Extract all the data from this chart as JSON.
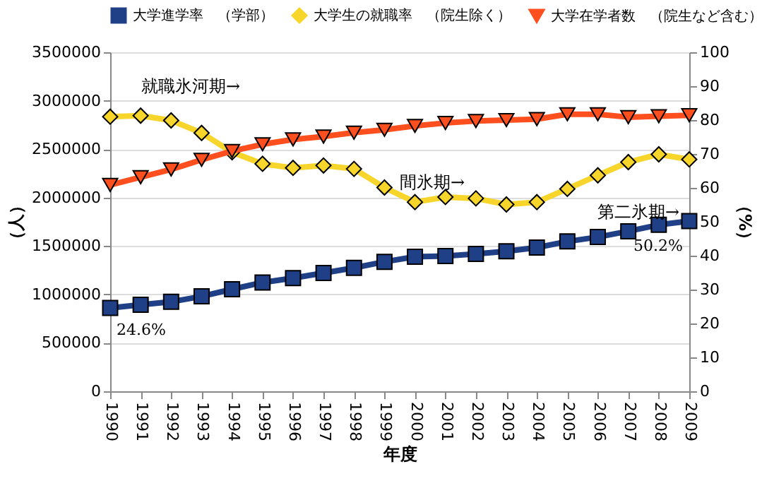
{
  "chart_data": {
    "type": "line",
    "xlabel": "年度",
    "ylabel": "（人）",
    "y2label": "（%）",
    "categories": [
      "1990",
      "1991",
      "1992",
      "1993",
      "1994",
      "1995",
      "1996",
      "1997",
      "1998",
      "1999",
      "2000",
      "2001",
      "2002",
      "2003",
      "2004",
      "2005",
      "2006",
      "2007",
      "2008",
      "2009"
    ],
    "series": [
      {
        "name": "大学進学率　（学部）",
        "color": "#1f3f86",
        "marker": "square",
        "axis": "y2",
        "values": [
          24.6,
          25.5,
          26.4,
          28.0,
          30.1,
          32.1,
          33.4,
          34.9,
          36.4,
          38.2,
          39.7,
          39.9,
          40.5,
          41.3,
          42.4,
          44.2,
          45.5,
          47.2,
          49.1,
          50.2
        ],
        "value_labels": [
          "24.6%",
          null,
          null,
          null,
          null,
          null,
          null,
          null,
          null,
          null,
          null,
          null,
          null,
          null,
          null,
          null,
          null,
          null,
          null,
          "50.2%"
        ]
      },
      {
        "name": "大学生の就職率　（院生除く）",
        "color": "#f7d52a",
        "marker": "diamond",
        "axis": "y2",
        "values": [
          81.0,
          81.3,
          79.9,
          76.2,
          70.5,
          67.1,
          65.9,
          66.6,
          65.6,
          60.1,
          55.8,
          57.3,
          56.9,
          55.1,
          55.8,
          59.7,
          63.7,
          67.6,
          69.9,
          68.4
        ]
      },
      {
        "name": "大学在学者数　（院生など含む）",
        "color": "#ff4f1f",
        "marker": "triangle-down",
        "values": [
          2130000,
          2210000,
          2290000,
          2390000,
          2480000,
          2550000,
          2600000,
          2630000,
          2670000,
          2700000,
          2740000,
          2770000,
          2790000,
          2800000,
          2810000,
          2860000,
          2860000,
          2830000,
          2840000,
          2850000
        ]
      }
    ],
    "ylim": [
      0,
      3500000
    ],
    "yticks": [
      0,
      500000,
      1000000,
      1500000,
      2000000,
      2500000,
      3000000,
      3500000
    ],
    "y2lim": [
      0,
      100
    ],
    "y2ticks": [
      0,
      10,
      20,
      30,
      40,
      50,
      60,
      70,
      80,
      90,
      100
    ],
    "grid": "y",
    "legend": "top",
    "line_style": "solid",
    "annotations": [
      "就職氷河期→",
      "間氷期→",
      "第二氷期→"
    ]
  }
}
